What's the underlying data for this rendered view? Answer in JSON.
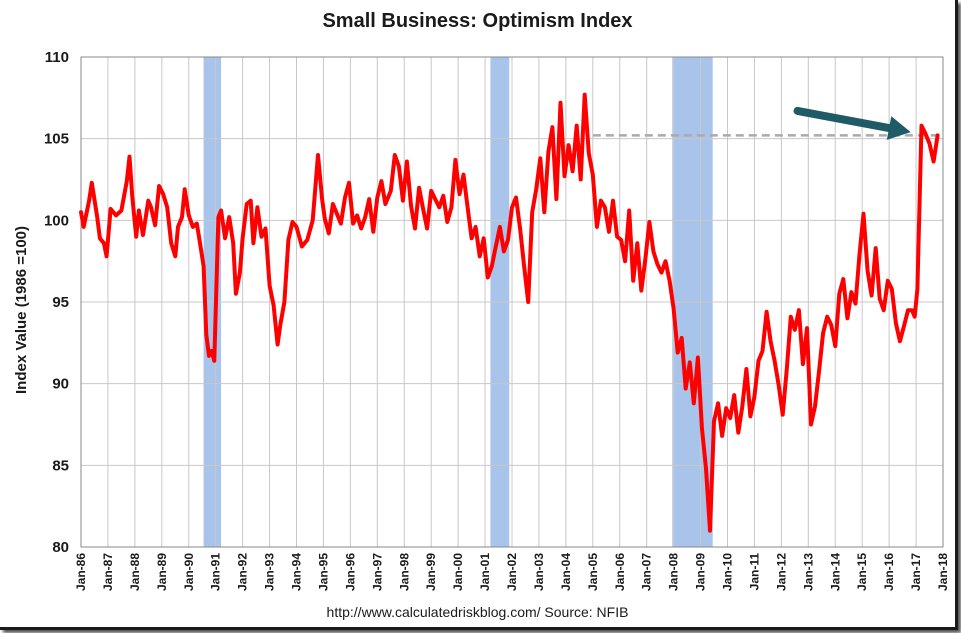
{
  "chart_data": {
    "type": "line",
    "title": "Small Business: Optimism Index",
    "ylabel": "Index Value (1986 =100)",
    "xlabel": "",
    "source": "http://www.calculatedriskblog.com/  Source: NFIB",
    "ylim": [
      80,
      110
    ],
    "yticks": [
      80,
      85,
      90,
      95,
      100,
      105,
      110
    ],
    "xlim": [
      1986,
      2018
    ],
    "xticks": [
      "Jan-86",
      "Jan-87",
      "Jan-88",
      "Jan-89",
      "Jan-90",
      "Jan-91",
      "Jan-92",
      "Jan-93",
      "Jan-94",
      "Jan-95",
      "Jan-96",
      "Jan-97",
      "Jan-98",
      "Jan-99",
      "Jan-00",
      "Jan-01",
      "Jan-02",
      "Jan-03",
      "Jan-04",
      "Jan-05",
      "Jan-06",
      "Jan-07",
      "Jan-08",
      "Jan-09",
      "Jan-10",
      "Jan-11",
      "Jan-12",
      "Jan-13",
      "Jan-14",
      "Jan-15",
      "Jan-16",
      "Jan-17",
      "Jan-18"
    ],
    "grid": true,
    "series": [
      {
        "color": "#ff0000",
        "x": [
          1986.0,
          1986.1,
          1986.3,
          1986.4,
          1986.6,
          1986.7,
          1986.85,
          1986.95,
          1987.1,
          1987.3,
          1987.5,
          1987.7,
          1987.8,
          1987.9,
          1988.05,
          1988.15,
          1988.3,
          1988.5,
          1988.6,
          1988.75,
          1988.9,
          1989.05,
          1989.2,
          1989.35,
          1989.5,
          1989.6,
          1989.75,
          1989.85,
          1990.0,
          1990.15,
          1990.3,
          1990.4,
          1990.55,
          1990.65,
          1990.75,
          1990.85,
          1990.95,
          1991.1,
          1991.2,
          1991.35,
          1991.5,
          1991.65,
          1991.75,
          1991.9,
          1992.0,
          1992.15,
          1992.3,
          1992.4,
          1992.55,
          1992.7,
          1992.85,
          1993.0,
          1993.15,
          1993.3,
          1993.4,
          1993.55,
          1993.7,
          1993.85,
          1994.0,
          1994.2,
          1994.4,
          1994.6,
          1994.8,
          1994.95,
          1995.05,
          1995.2,
          1995.35,
          1995.5,
          1995.65,
          1995.8,
          1995.95,
          1996.1,
          1996.25,
          1996.4,
          1996.55,
          1996.7,
          1996.85,
          1997.0,
          1997.15,
          1997.3,
          1997.5,
          1997.65,
          1997.8,
          1997.95,
          1998.1,
          1998.25,
          1998.4,
          1998.55,
          1998.7,
          1998.85,
          1999.0,
          1999.15,
          1999.3,
          1999.45,
          1999.6,
          1999.75,
          1999.9,
          2000.05,
          2000.2,
          2000.35,
          2000.5,
          2000.65,
          2000.8,
          2000.95,
          2001.1,
          2001.25,
          2001.4,
          2001.55,
          2001.7,
          2001.85,
          2002.0,
          2002.15,
          2002.3,
          2002.45,
          2002.6,
          2002.75,
          2002.9,
          2003.05,
          2003.2,
          2003.35,
          2003.5,
          2003.65,
          2003.8,
          2003.95,
          2004.1,
          2004.25,
          2004.4,
          2004.55,
          2004.7,
          2004.85,
          2005.0,
          2005.15,
          2005.3,
          2005.45,
          2005.6,
          2005.75,
          2005.9,
          2006.05,
          2006.2,
          2006.35,
          2006.5,
          2006.65,
          2006.8,
          2006.95,
          2007.1,
          2007.25,
          2007.4,
          2007.55,
          2007.7,
          2007.85,
          2008.0,
          2008.15,
          2008.3,
          2008.45,
          2008.6,
          2008.75,
          2008.9,
          2009.05,
          2009.2,
          2009.35,
          2009.5,
          2009.65,
          2009.8,
          2009.95,
          2010.1,
          2010.25,
          2010.4,
          2010.55,
          2010.7,
          2010.85,
          2011.0,
          2011.15,
          2011.3,
          2011.45,
          2011.6,
          2011.75,
          2011.9,
          2012.05,
          2012.2,
          2012.35,
          2012.5,
          2012.65,
          2012.8,
          2012.95,
          2013.1,
          2013.25,
          2013.4,
          2013.55,
          2013.7,
          2013.85,
          2014.0,
          2014.15,
          2014.3,
          2014.45,
          2014.6,
          2014.75,
          2014.9,
          2015.05,
          2015.2,
          2015.35,
          2015.5,
          2015.65,
          2015.8,
          2015.95,
          2016.1,
          2016.25,
          2016.4,
          2016.55,
          2016.7,
          2016.85,
          2016.95,
          2017.05,
          2017.2,
          2017.35,
          2017.5,
          2017.65,
          2017.8
        ],
        "y": [
          100.5,
          99.6,
          101.2,
          102.3,
          100.2,
          98.9,
          98.6,
          97.8,
          100.7,
          100.3,
          100.6,
          102.4,
          103.9,
          101.5,
          99.0,
          100.6,
          99.1,
          101.2,
          100.8,
          99.7,
          102.1,
          101.6,
          100.8,
          98.6,
          97.8,
          99.6,
          100.2,
          101.9,
          100.3,
          99.6,
          99.8,
          98.8,
          97.2,
          93.0,
          91.7,
          92.0,
          91.4,
          100.2,
          100.6,
          98.9,
          100.2,
          98.6,
          95.5,
          96.8,
          98.9,
          101.0,
          101.2,
          98.6,
          100.8,
          99.0,
          99.5,
          96.0,
          94.8,
          92.4,
          93.6,
          95.0,
          98.8,
          99.9,
          99.6,
          98.4,
          98.8,
          100.0,
          104.0,
          101.3,
          100.1,
          99.2,
          101.0,
          100.4,
          99.8,
          101.4,
          102.3,
          99.8,
          100.3,
          99.5,
          100.2,
          101.3,
          99.3,
          101.4,
          102.4,
          101.0,
          101.8,
          104.0,
          103.3,
          101.2,
          103.6,
          100.9,
          99.5,
          102.0,
          100.7,
          99.5,
          101.8,
          101.3,
          100.8,
          101.5,
          99.9,
          100.8,
          103.7,
          101.6,
          102.8,
          100.8,
          98.9,
          99.6,
          97.8,
          98.9,
          96.5,
          97.2,
          98.4,
          99.6,
          98.1,
          98.8,
          100.8,
          101.4,
          99.5,
          97.2,
          95.0,
          100.5,
          101.9,
          103.8,
          100.5,
          104.2,
          105.7,
          101.3,
          107.2,
          102.7,
          104.6,
          103.0,
          105.8,
          102.5,
          107.7,
          104.1,
          102.8,
          99.6,
          101.2,
          100.8,
          99.3,
          101.2,
          99.0,
          98.8,
          97.5,
          100.6,
          96.3,
          98.6,
          95.7,
          97.6,
          99.9,
          98.1,
          97.3,
          96.8,
          97.5,
          96.3,
          94.6,
          91.9,
          92.8,
          89.7,
          91.3,
          88.8,
          91.6,
          87.3,
          84.8,
          81.0,
          87.7,
          88.8,
          86.8,
          88.5,
          87.9,
          89.3,
          87.0,
          88.6,
          90.9,
          88.0,
          89.2,
          91.4,
          92.0,
          94.4,
          92.6,
          91.4,
          89.9,
          88.1,
          90.9,
          94.1,
          93.3,
          94.5,
          91.2,
          93.4,
          87.5,
          88.6,
          90.8,
          93.1,
          94.1,
          93.6,
          92.3,
          95.5,
          96.4,
          94.0,
          95.6,
          94.9,
          97.9,
          100.4,
          96.9,
          95.4,
          98.3,
          95.2,
          94.5,
          96.3,
          95.8,
          93.7,
          92.6,
          93.5,
          94.5,
          94.5,
          94.1,
          95.8,
          105.8,
          105.3,
          104.7,
          103.6,
          105.2
        ]
      }
    ],
    "recessions": [
      [
        1990.55,
        1991.2
      ],
      [
        2001.2,
        2001.9
      ],
      [
        2007.95,
        2009.45
      ]
    ],
    "reference_line": {
      "y": 105.2,
      "x_start": 2005.0,
      "x_end": 2018.0
    },
    "annotation_arrow": {
      "from": [
        2012.6,
        106.7
      ],
      "to": [
        2016.8,
        105.4
      ]
    }
  },
  "colors": {
    "line": "#ff0000",
    "recession": "#a9c4eb",
    "arrow": "#1f5b66",
    "reference": "#aaaaaa",
    "grid": "#c8c8c8"
  }
}
